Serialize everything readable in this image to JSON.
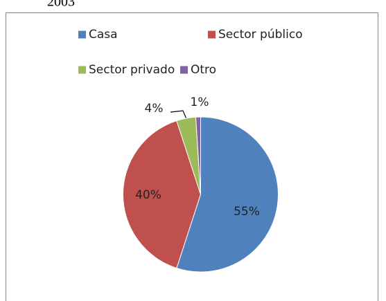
{
  "chart_data": {
    "type": "pie",
    "title": "2003",
    "categories": [
      "Casa",
      "Sector público",
      "Sector privado",
      "Otro"
    ],
    "values": [
      55,
      40,
      4,
      1
    ],
    "value_labels": [
      "55%",
      "40%",
      "4%",
      "1%"
    ],
    "colors": [
      "#4f81bd",
      "#c0504d",
      "#9bbb59",
      "#8064a2"
    ],
    "legend": "top"
  }
}
